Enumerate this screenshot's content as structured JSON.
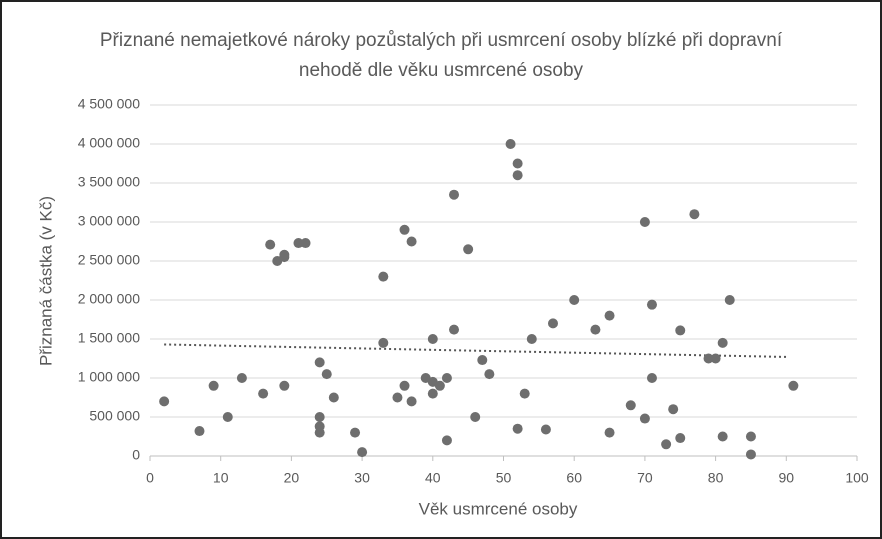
{
  "chart_data": {
    "type": "scatter",
    "title": "Přiznané nemajetkové nároky pozůstalých při usmrcení osoby blízké při dopravní nehodě dle věku usmrcené osoby",
    "xlabel": "Věk usmrcené osoby",
    "ylabel": "Přiznaná částka (v Kč)",
    "series": [
      {
        "color": "#6e6e6e",
        "x": [
          2,
          7,
          9,
          11,
          13,
          16,
          17,
          18,
          19,
          19,
          19,
          21,
          22,
          24,
          24,
          24,
          24,
          25,
          26,
          29,
          30,
          33,
          33,
          35,
          36,
          36,
          37,
          37,
          39,
          40,
          40,
          40,
          41,
          42,
          42,
          43,
          43,
          45,
          46,
          47,
          48,
          51,
          52,
          52,
          52,
          53,
          54,
          56,
          57,
          60,
          63,
          65,
          65,
          68,
          70,
          70,
          71,
          71,
          73,
          74,
          75,
          75,
          77,
          79,
          80,
          81,
          81,
          82,
          85,
          85,
          91
        ],
        "values": [
          700000,
          320000,
          900000,
          500000,
          1000000,
          800000,
          2710000,
          2500000,
          2550000,
          2580000,
          900000,
          2730000,
          2730000,
          1200000,
          500000,
          380000,
          300000,
          1050000,
          750000,
          300000,
          50000,
          2300000,
          1450000,
          750000,
          900000,
          2900000,
          700000,
          2750000,
          1000000,
          1500000,
          950000,
          800000,
          900000,
          1000000,
          200000,
          3350000,
          1620000,
          2650000,
          500000,
          1230000,
          1050000,
          4000000,
          3750000,
          3600000,
          350000,
          800000,
          1500000,
          340000,
          1700000,
          2000000,
          1620000,
          1800000,
          300000,
          650000,
          3000000,
          480000,
          1940000,
          1000000,
          150000,
          600000,
          1610000,
          230000,
          3100000,
          1250000,
          1250000,
          1450000,
          250000,
          2000000,
          250000,
          20000,
          900000
        ]
      }
    ],
    "trendline": {
      "color": "#555555",
      "x": [
        2,
        90
      ],
      "values": [
        1430000,
        1270000
      ]
    },
    "xlim": [
      0,
      100
    ],
    "xticks": [
      0,
      10,
      20,
      30,
      40,
      50,
      60,
      70,
      80,
      90,
      100
    ],
    "ylim": [
      0,
      4500000
    ],
    "yticks": [
      {
        "value": 0,
        "label": "0"
      },
      {
        "value": 500000,
        "label": "500 000"
      },
      {
        "value": 1000000,
        "label": "1 000 000"
      },
      {
        "value": 1500000,
        "label": "1 500 000"
      },
      {
        "value": 2000000,
        "label": "2 000 000"
      },
      {
        "value": 2500000,
        "label": "2 500 000"
      },
      {
        "value": 3000000,
        "label": "3 000 000"
      },
      {
        "value": 3500000,
        "label": "3 500 000"
      },
      {
        "value": 4000000,
        "label": "4 000 000"
      },
      {
        "value": 4500000,
        "label": "4 500 000"
      }
    ],
    "grid": true
  }
}
